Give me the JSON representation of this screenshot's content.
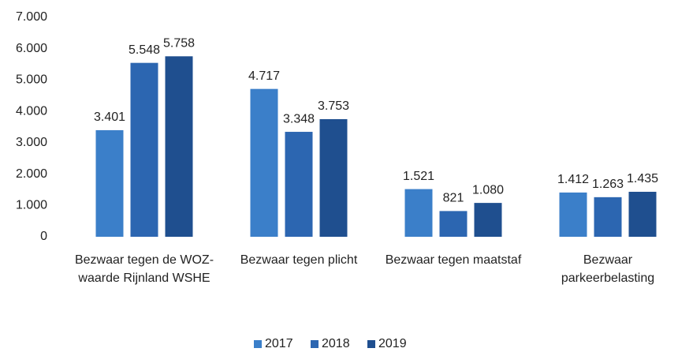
{
  "chart_data": {
    "type": "bar",
    "categories": [
      "Bezwaar tegen de WOZ-waarde Rijnland WSHE",
      "Bezwaar tegen plicht",
      "Bezwaar tegen maatstaf",
      "Bezwaar parkeerbelasting"
    ],
    "series": [
      {
        "name": "2017",
        "color": "#3b7fc9",
        "values": [
          3401,
          4717,
          1521,
          1412
        ],
        "value_labels": [
          "3.401",
          "4.717",
          "1.521",
          "1.412"
        ]
      },
      {
        "name": "2018",
        "color": "#2c66b1",
        "values": [
          5548,
          3348,
          821,
          1263
        ],
        "value_labels": [
          "5.548",
          "3.348",
          "821",
          "1.263"
        ]
      },
      {
        "name": "2019",
        "color": "#1f4f8f",
        "values": [
          5758,
          3753,
          1080,
          1435
        ],
        "value_labels": [
          "5.758",
          "3.753",
          "1.080",
          "1.435"
        ]
      }
    ],
    "ylim": [
      0,
      7000
    ],
    "yticks": [
      {
        "value": 0,
        "label": "0"
      },
      {
        "value": 1000,
        "label": "1.000"
      },
      {
        "value": 2000,
        "label": "2.000"
      },
      {
        "value": 3000,
        "label": "3.000"
      },
      {
        "value": 4000,
        "label": "4.000"
      },
      {
        "value": 5000,
        "label": "5.000"
      },
      {
        "value": 6000,
        "label": "6.000"
      },
      {
        "value": 7000,
        "label": "7.000"
      }
    ],
    "grid": false,
    "legend": "bottom"
  }
}
